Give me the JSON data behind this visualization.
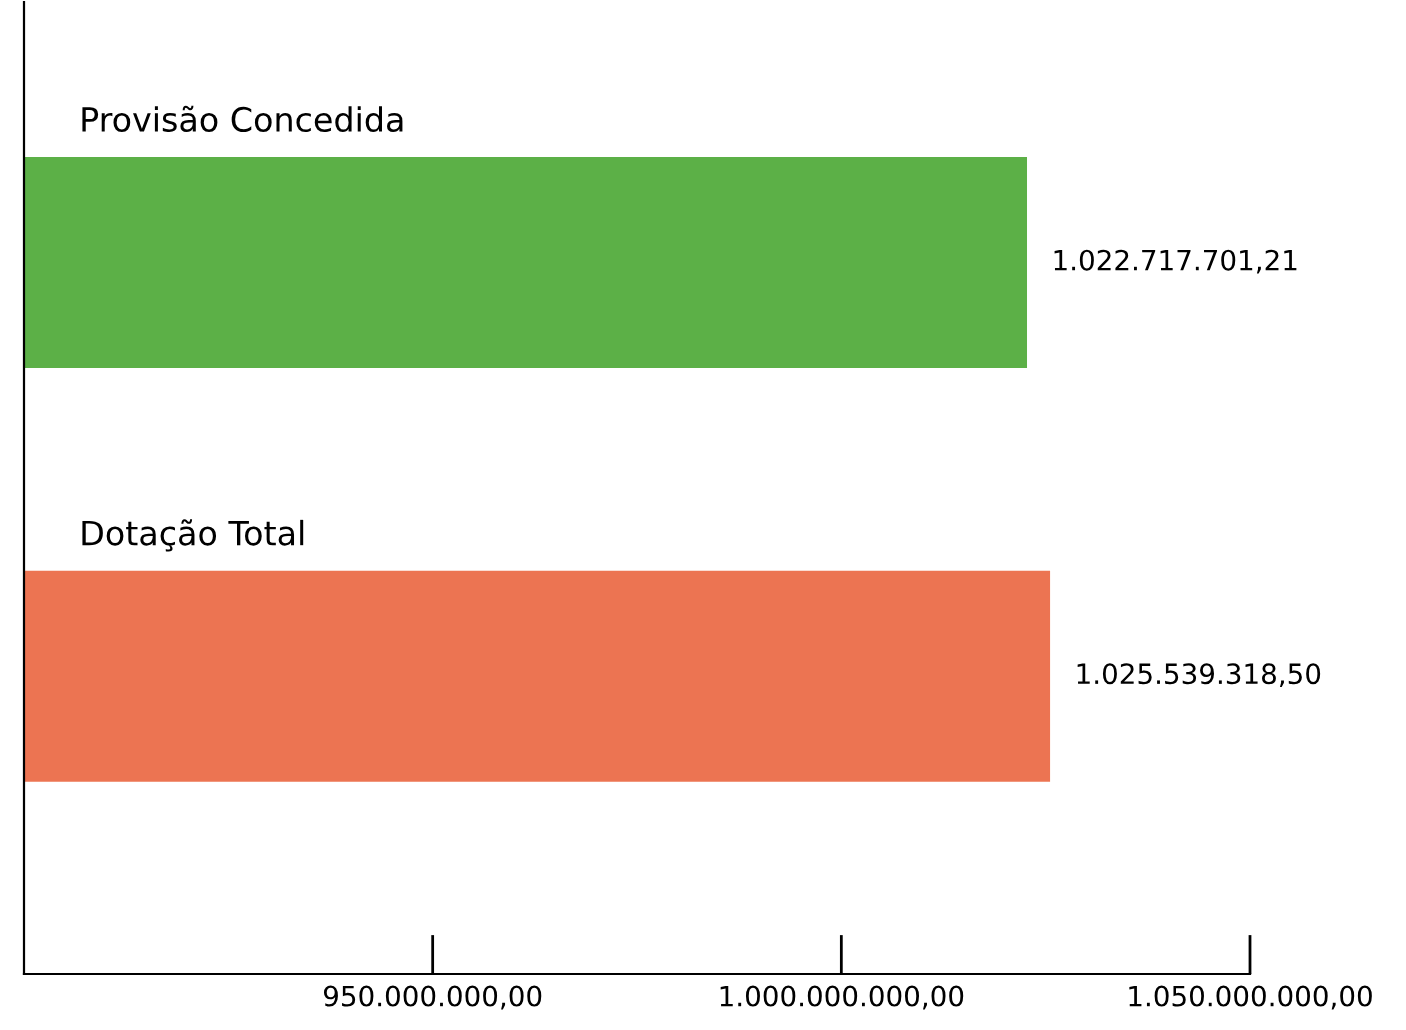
{
  "chart_data": {
    "type": "bar",
    "orientation": "horizontal",
    "categories": [
      "Provisão Concedida",
      "Dotação Total"
    ],
    "values": [
      1022717701.21,
      1025539318.5
    ],
    "colors": [
      "#5cb047",
      "#ec7452"
    ],
    "value_labels": [
      "1.022.717.701,21",
      "1.025.539.318,50"
    ],
    "xlim": [
      900000000,
      1050000000
    ],
    "xticks": [
      {
        "value": 950000000,
        "label": "950.000.000,00"
      },
      {
        "value": 1000000000,
        "label": "1.000.000.000,00"
      },
      {
        "value": 1050000000,
        "label": "1.050.000.000,00"
      }
    ],
    "grid": false,
    "legend": false
  }
}
